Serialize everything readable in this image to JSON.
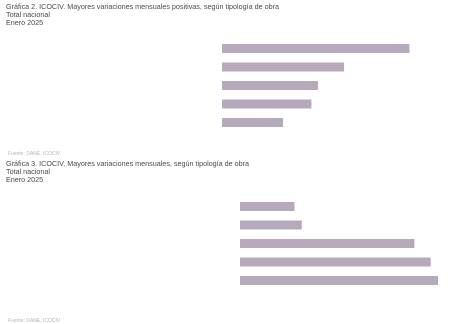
{
  "chart_data": [
    {
      "type": "bar",
      "orientation": "horizontal",
      "title_lines": [
        "Gráfica 2. ICOCIV. Mayores variaciones mensuales positivas, según tipología de obra",
        "Total nacional",
        "Enero 2025"
      ],
      "categories": [
        "",
        "",
        "",
        "",
        ""
      ],
      "values": [
        8.6,
        5.6,
        4.4,
        4.1,
        2.8
      ],
      "value_labels": [
        "",
        "",
        "",
        "",
        ""
      ],
      "xlim": [
        0,
        10
      ],
      "xticks": [
        "",
        "",
        "",
        "",
        "",
        ""
      ],
      "xlabel": "",
      "source": "Fuente: DANE, ICOCIV",
      "bar_color": "#b5a9bb"
    },
    {
      "type": "bar",
      "orientation": "horizontal",
      "title_lines": [
        "Gráfica 3. ICOCIV. Mayores variaciones mensuales, según tipología de obra",
        "Total nacional",
        "Enero 2025"
      ],
      "categories": [
        "",
        "",
        "",
        "",
        ""
      ],
      "values": [
        3.0,
        3.4,
        9.6,
        10.5,
        10.9
      ],
      "value_labels": [
        "",
        "",
        "",
        "",
        ""
      ],
      "xlim": [
        0,
        12
      ],
      "xticks": [
        "",
        "",
        "",
        "",
        "",
        "",
        ""
      ],
      "xlabel": "",
      "source": "Fuente: DANE, ICOCIV",
      "bar_color": "#b5a9bb"
    }
  ]
}
